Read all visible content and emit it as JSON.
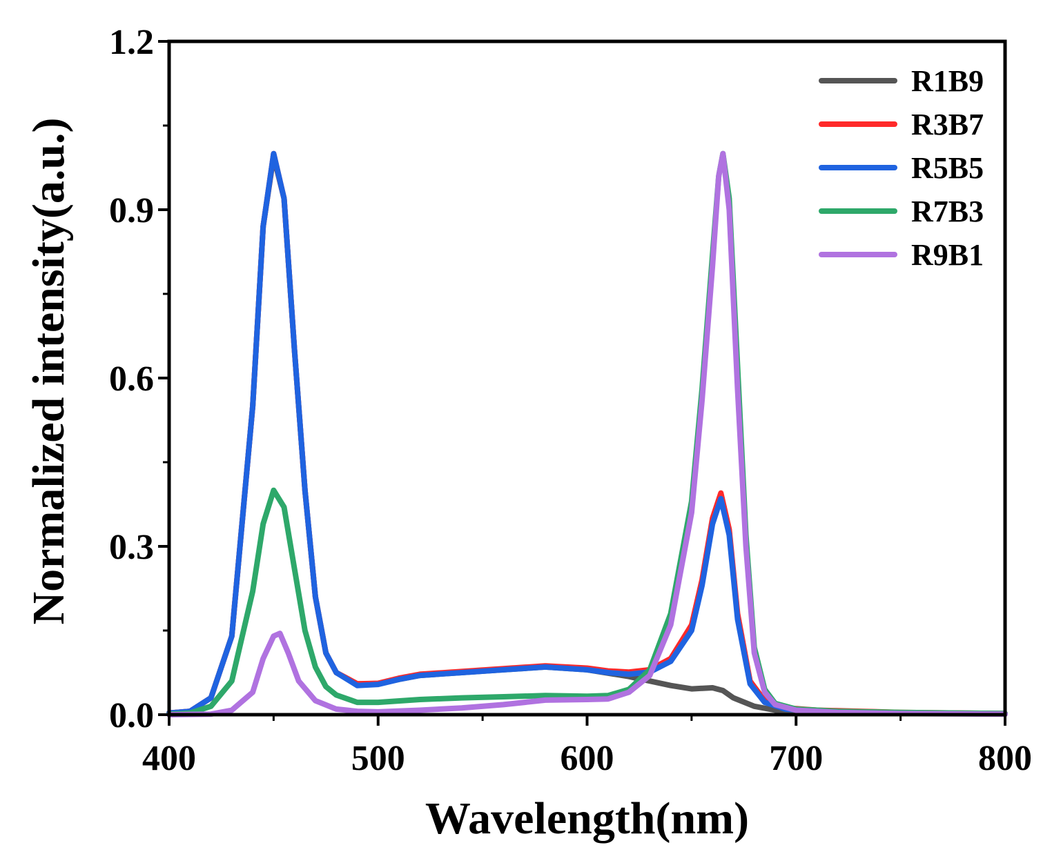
{
  "chart_data": {
    "type": "line",
    "title": "",
    "xlabel": "Wavelength(nm)",
    "ylabel": "Normalized intensity(a.u.)",
    "xlim": [
      400,
      800
    ],
    "ylim": [
      0.0,
      1.2
    ],
    "xticks": [
      400,
      500,
      600,
      700,
      800
    ],
    "xtick_labels": [
      "400",
      "500",
      "600",
      "700",
      "800"
    ],
    "yticks": [
      0.0,
      0.3,
      0.6,
      0.9,
      1.2
    ],
    "ytick_labels": [
      "0.0",
      "0.3",
      "0.6",
      "0.9",
      "1.2"
    ],
    "legend_position": "top-right",
    "series": [
      {
        "name": "R1B9",
        "color": "#555555",
        "points": [
          [
            400,
            0.003
          ],
          [
            410,
            0.006
          ],
          [
            420,
            0.03
          ],
          [
            430,
            0.14
          ],
          [
            440,
            0.55
          ],
          [
            445,
            0.87
          ],
          [
            450,
            0.995
          ],
          [
            455,
            0.92
          ],
          [
            460,
            0.65
          ],
          [
            465,
            0.4
          ],
          [
            470,
            0.21
          ],
          [
            475,
            0.11
          ],
          [
            480,
            0.075
          ],
          [
            490,
            0.055
          ],
          [
            500,
            0.055
          ],
          [
            510,
            0.063
          ],
          [
            520,
            0.07
          ],
          [
            540,
            0.075
          ],
          [
            560,
            0.08
          ],
          [
            580,
            0.085
          ],
          [
            600,
            0.08
          ],
          [
            610,
            0.074
          ],
          [
            620,
            0.068
          ],
          [
            630,
            0.06
          ],
          [
            640,
            0.052
          ],
          [
            650,
            0.046
          ],
          [
            660,
            0.048
          ],
          [
            665,
            0.043
          ],
          [
            670,
            0.03
          ],
          [
            680,
            0.015
          ],
          [
            690,
            0.008
          ],
          [
            700,
            0.005
          ],
          [
            720,
            0.004
          ],
          [
            750,
            0.003
          ],
          [
            800,
            0.002
          ]
        ]
      },
      {
        "name": "R3B7",
        "color": "#ff2a2a",
        "points": [
          [
            400,
            0.003
          ],
          [
            410,
            0.006
          ],
          [
            420,
            0.03
          ],
          [
            430,
            0.14
          ],
          [
            440,
            0.55
          ],
          [
            445,
            0.87
          ],
          [
            450,
            1.0
          ],
          [
            455,
            0.92
          ],
          [
            460,
            0.65
          ],
          [
            465,
            0.4
          ],
          [
            470,
            0.21
          ],
          [
            475,
            0.11
          ],
          [
            480,
            0.075
          ],
          [
            490,
            0.055
          ],
          [
            500,
            0.056
          ],
          [
            510,
            0.065
          ],
          [
            520,
            0.072
          ],
          [
            540,
            0.077
          ],
          [
            560,
            0.082
          ],
          [
            580,
            0.087
          ],
          [
            600,
            0.083
          ],
          [
            610,
            0.078
          ],
          [
            620,
            0.076
          ],
          [
            630,
            0.08
          ],
          [
            640,
            0.1
          ],
          [
            650,
            0.16
          ],
          [
            655,
            0.24
          ],
          [
            660,
            0.35
          ],
          [
            664,
            0.395
          ],
          [
            668,
            0.33
          ],
          [
            672,
            0.18
          ],
          [
            678,
            0.06
          ],
          [
            685,
            0.025
          ],
          [
            695,
            0.012
          ],
          [
            710,
            0.008
          ],
          [
            750,
            0.004
          ],
          [
            800,
            0.002
          ]
        ]
      },
      {
        "name": "R5B5",
        "color": "#1f63e0",
        "points": [
          [
            400,
            0.003
          ],
          [
            410,
            0.006
          ],
          [
            420,
            0.03
          ],
          [
            430,
            0.14
          ],
          [
            440,
            0.55
          ],
          [
            445,
            0.87
          ],
          [
            450,
            1.0
          ],
          [
            455,
            0.92
          ],
          [
            460,
            0.65
          ],
          [
            465,
            0.4
          ],
          [
            470,
            0.21
          ],
          [
            475,
            0.11
          ],
          [
            480,
            0.075
          ],
          [
            490,
            0.052
          ],
          [
            500,
            0.054
          ],
          [
            510,
            0.063
          ],
          [
            520,
            0.07
          ],
          [
            540,
            0.075
          ],
          [
            560,
            0.08
          ],
          [
            580,
            0.085
          ],
          [
            600,
            0.08
          ],
          [
            610,
            0.075
          ],
          [
            620,
            0.072
          ],
          [
            630,
            0.076
          ],
          [
            640,
            0.095
          ],
          [
            650,
            0.15
          ],
          [
            655,
            0.23
          ],
          [
            660,
            0.34
          ],
          [
            664,
            0.385
          ],
          [
            668,
            0.32
          ],
          [
            672,
            0.17
          ],
          [
            678,
            0.055
          ],
          [
            685,
            0.022
          ],
          [
            695,
            0.01
          ],
          [
            710,
            0.006
          ],
          [
            750,
            0.003
          ],
          [
            800,
            0.002
          ]
        ]
      },
      {
        "name": "R7B3",
        "color": "#2ea86a",
        "points": [
          [
            400,
            0.001
          ],
          [
            410,
            0.003
          ],
          [
            420,
            0.015
          ],
          [
            430,
            0.06
          ],
          [
            440,
            0.22
          ],
          [
            445,
            0.34
          ],
          [
            450,
            0.4
          ],
          [
            455,
            0.37
          ],
          [
            460,
            0.26
          ],
          [
            465,
            0.15
          ],
          [
            470,
            0.085
          ],
          [
            475,
            0.05
          ],
          [
            480,
            0.035
          ],
          [
            490,
            0.022
          ],
          [
            500,
            0.022
          ],
          [
            520,
            0.027
          ],
          [
            540,
            0.03
          ],
          [
            560,
            0.032
          ],
          [
            580,
            0.034
          ],
          [
            600,
            0.033
          ],
          [
            610,
            0.034
          ],
          [
            620,
            0.045
          ],
          [
            630,
            0.08
          ],
          [
            640,
            0.18
          ],
          [
            650,
            0.38
          ],
          [
            655,
            0.58
          ],
          [
            660,
            0.82
          ],
          [
            663,
            0.96
          ],
          [
            665,
            1.0
          ],
          [
            668,
            0.92
          ],
          [
            672,
            0.62
          ],
          [
            676,
            0.32
          ],
          [
            680,
            0.12
          ],
          [
            685,
            0.045
          ],
          [
            690,
            0.02
          ],
          [
            700,
            0.01
          ],
          [
            720,
            0.006
          ],
          [
            750,
            0.004
          ],
          [
            800,
            0.002
          ]
        ]
      },
      {
        "name": "R9B1",
        "color": "#b072e0",
        "points": [
          [
            400,
            0.0
          ],
          [
            420,
            0.001
          ],
          [
            430,
            0.008
          ],
          [
            440,
            0.04
          ],
          [
            445,
            0.1
          ],
          [
            450,
            0.14
          ],
          [
            453,
            0.145
          ],
          [
            457,
            0.11
          ],
          [
            462,
            0.06
          ],
          [
            470,
            0.025
          ],
          [
            480,
            0.01
          ],
          [
            490,
            0.006
          ],
          [
            500,
            0.005
          ],
          [
            520,
            0.008
          ],
          [
            540,
            0.012
          ],
          [
            560,
            0.018
          ],
          [
            580,
            0.026
          ],
          [
            600,
            0.027
          ],
          [
            610,
            0.028
          ],
          [
            620,
            0.04
          ],
          [
            630,
            0.07
          ],
          [
            640,
            0.16
          ],
          [
            650,
            0.36
          ],
          [
            655,
            0.56
          ],
          [
            660,
            0.8
          ],
          [
            663,
            0.96
          ],
          [
            665,
            1.0
          ],
          [
            668,
            0.9
          ],
          [
            672,
            0.58
          ],
          [
            676,
            0.3
          ],
          [
            680,
            0.11
          ],
          [
            685,
            0.04
          ],
          [
            690,
            0.018
          ],
          [
            700,
            0.008
          ],
          [
            720,
            0.004
          ],
          [
            750,
            0.002
          ],
          [
            800,
            0.001
          ]
        ]
      }
    ]
  }
}
